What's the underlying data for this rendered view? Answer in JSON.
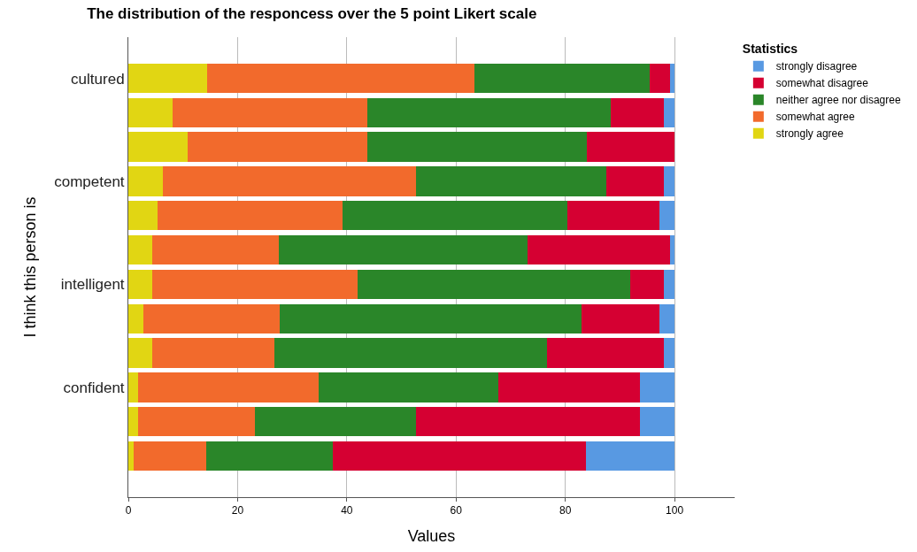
{
  "chart_data": {
    "type": "bar",
    "orientation": "horizontal",
    "stacked": true,
    "title": "The distribution of the responcess over the 5 point Likert scale",
    "xlabel": "Values",
    "ylabel": "I think this person is",
    "legend_title": "Statistics",
    "legend": "top right",
    "grid": "x",
    "categories": [
      "cultured",
      null,
      null,
      "competent",
      null,
      null,
      "intelligent",
      null,
      null,
      "confident",
      null,
      null
    ],
    "xlim": [
      0,
      111
    ],
    "xticks": [
      0,
      20,
      40,
      60,
      80,
      100
    ],
    "series": [
      {
        "name": "strongly agree",
        "color": "#e1d613",
        "values": [
          14.4,
          8.1,
          10.8,
          6.3,
          5.3,
          4.4,
          4.4,
          2.7,
          4.4,
          1.8,
          1.8,
          0.9
        ]
      },
      {
        "name": "somewhat agree",
        "color": "#f26a2c",
        "values": [
          49.0,
          35.7,
          33.0,
          46.4,
          33.9,
          23.1,
          37.5,
          25.0,
          22.3,
          33.0,
          21.4,
          13.4
        ]
      },
      {
        "name": "neither agree nor disagree",
        "color": "#2a8629",
        "values": [
          32.1,
          44.5,
          40.1,
          34.8,
          41.1,
          45.6,
          50.0,
          55.3,
          49.9,
          33.0,
          29.5,
          23.2
        ]
      },
      {
        "name": "somewhat disagree",
        "color": "#d50032",
        "values": [
          3.6,
          9.7,
          16.1,
          10.6,
          16.9,
          26.0,
          6.2,
          14.2,
          21.5,
          25.9,
          41.0,
          46.3
        ]
      },
      {
        "name": "strongly disagree",
        "color": "#5899e2",
        "values": [
          0.9,
          2.0,
          0.0,
          1.9,
          2.8,
          0.9,
          1.9,
          2.8,
          1.9,
          6.3,
          6.3,
          16.2
        ]
      }
    ]
  }
}
